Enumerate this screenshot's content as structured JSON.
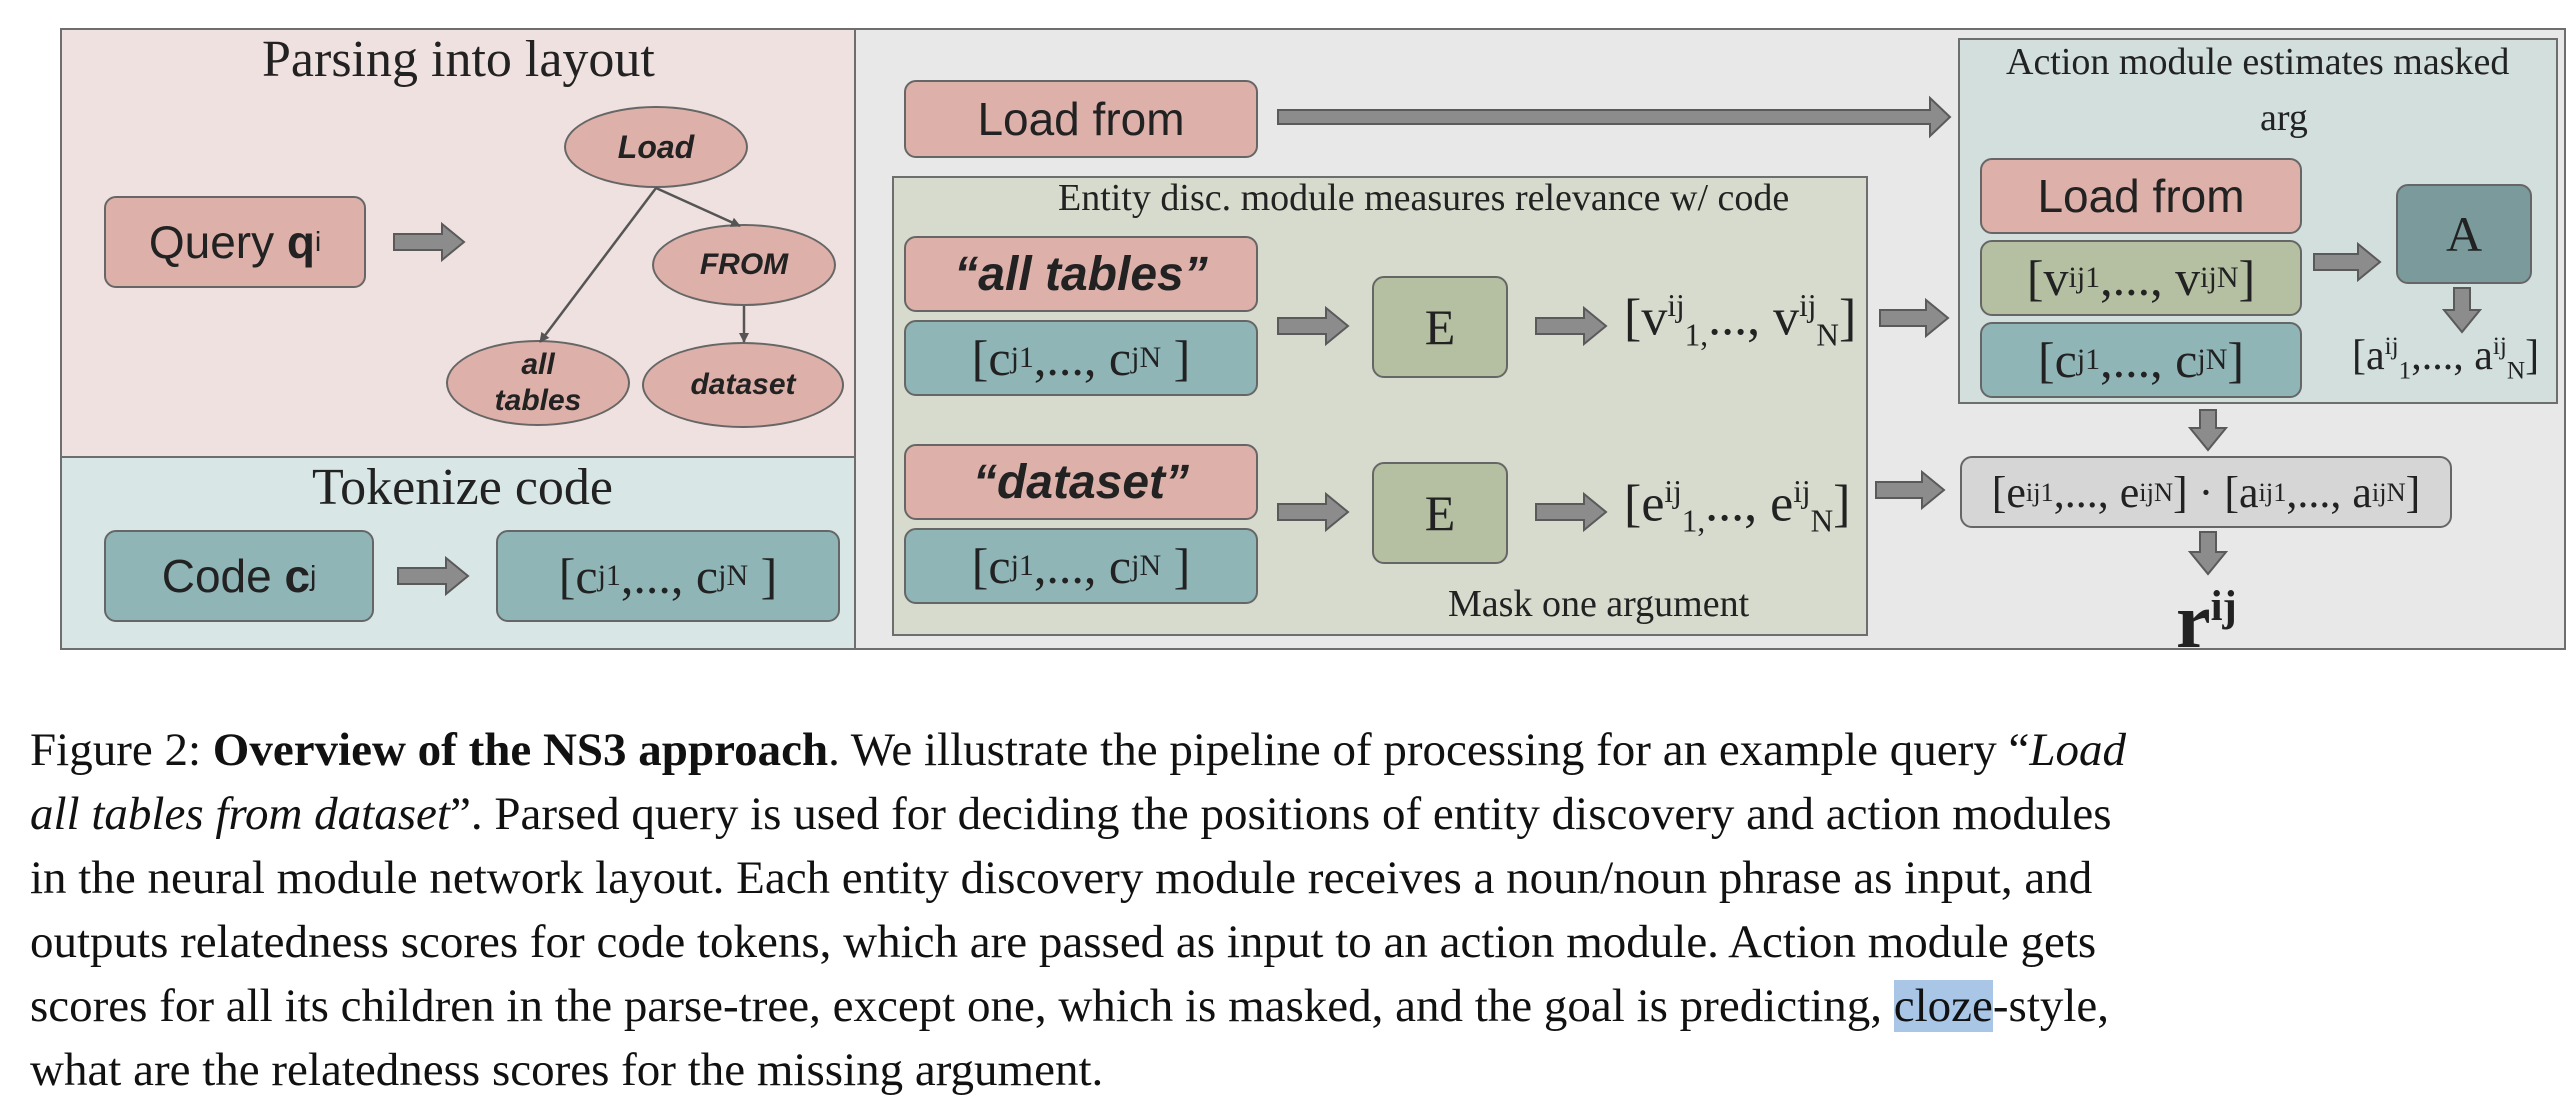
{
  "figure": {
    "panels": {
      "parsing": {
        "title": "Parsing into layout",
        "query_box": {
          "prefix": "Query ",
          "bold": "q",
          "sup": "i"
        },
        "tree_nodes": {
          "load": "Load",
          "from": "FROM",
          "all_tables_line1": "all",
          "all_tables_line2": "tables",
          "dataset": "dataset"
        }
      },
      "tokenize": {
        "title": "Tokenize code",
        "code_box": {
          "prefix": "Code ",
          "bold": "c",
          "sup": "j"
        },
        "tokens_box": {
          "open": "[c",
          "sup1": "j",
          "sub1": "1",
          "mid": ",..., c",
          "sup2": "j",
          "sub2": "N",
          "close": " ]"
        }
      },
      "entity": {
        "title": "Entity disc. module measures relevance w/ code",
        "footer": "Mask one argument",
        "load_from": "Load from",
        "all_tables_phrase": "“all tables”",
        "dataset_phrase": "“dataset”",
        "tokens_top": {
          "open": "[c",
          "sup1": "j",
          "sub1": "1",
          "mid": ",..., c",
          "sup2": "j",
          "sub2": "N",
          "close": " ]"
        },
        "tokens_bottom": {
          "open": "[c",
          "sup1": "j",
          "sub1": "1",
          "mid": ",..., c",
          "sup2": "j",
          "sub2": "N",
          "close": " ]"
        },
        "e_top": "E",
        "e_bottom": "E",
        "v_out": {
          "open": "[v",
          "sup1": "ij",
          "sub1": "1,",
          "mid": "..., v",
          "sup2": "ij",
          "sub2": "N",
          "close": "]"
        },
        "e_out": {
          "open": "[e",
          "sup1": "ij",
          "sub1": "1,",
          "mid": "..., e",
          "sup2": "ij",
          "sub2": "N",
          "close": "]"
        }
      },
      "action": {
        "title_line1": "Action module estimates masked",
        "title_line2": "arg",
        "load_from": "Load from",
        "v_box": {
          "open": "[v",
          "sup1": "ij",
          "sub1": "1",
          "mid": ",..., v",
          "sup2": "ij",
          "sub2": "N",
          "close": "]"
        },
        "c_box": {
          "open": "[c",
          "sup1": "j",
          "sub1": "1",
          "mid": ",..., c",
          "sup2": "j",
          "sub2": "N",
          "close": "]"
        },
        "a_module": "A",
        "a_out": {
          "open": "[a",
          "sup1": "ij",
          "sub1": "1",
          "mid": ",..., a",
          "sup2": "ij",
          "sub2": "N",
          "close": "]"
        },
        "product": {
          "open": "[e",
          "sup1": "ij",
          "sub1": "1",
          "mid": ",..., e",
          "sup2": "ij",
          "sub2": "N",
          "dot": "] · [a",
          "sup3": "ij",
          "sub3": "1",
          "mid2": ",..., a",
          "sup4": "ij",
          "sub4": "N",
          "close": "]"
        },
        "result": {
          "base": "r",
          "sup": "ij"
        }
      }
    }
  },
  "caption": {
    "label": "Figure 2: ",
    "bold_title": "Overview of the NS3 approach",
    "line1_rest": ". We illustrate the pipeline of processing for an example query “",
    "line1_italic": "Load",
    "line2_italic": "all tables from dataset",
    "line2_rest": "”. Parsed query is used for deciding the positions of entity discovery and action modules",
    "line3": "in the neural module network layout. Each entity discovery module receives a noun/noun phrase as input, and",
    "line4": "outputs relatedness scores for code tokens, which are passed as input to an action module. Action module gets",
    "line5_before": "scores for all its children in the parse-tree, except one, which is masked, and the goal is predicting, ",
    "line5_highlight": "cloze",
    "line5_after": "-style,",
    "line6": "what are the relatedness scores for the missing argument."
  }
}
